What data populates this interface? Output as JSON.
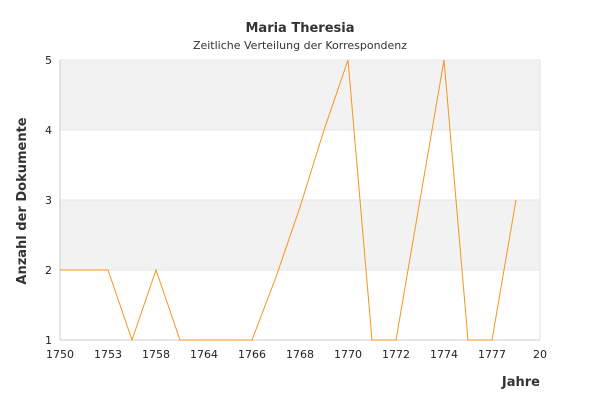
{
  "chart_data": {
    "type": "line",
    "title": "Maria Theresia",
    "subtitle": "Zeitliche Verteilung der Korrespondenz",
    "xlabel": "Jahre",
    "ylabel": "Anzahl der Dokumente",
    "x_tick_labels": [
      "1750",
      "1753",
      "1758",
      "1764",
      "1766",
      "1768",
      "1770",
      "1772",
      "1774",
      "1777",
      "20"
    ],
    "y_ticks": [
      1,
      2,
      3,
      4,
      5
    ],
    "ylim": [
      1,
      5
    ],
    "grid": true,
    "legend": "none",
    "colors": {
      "line": "#f7941d",
      "band": "#f2f2f2",
      "axis": "#cccccc"
    },
    "series": [
      {
        "x": [
          0,
          1,
          1.5,
          2,
          2.5,
          3,
          4,
          4.5,
          5,
          5.5,
          6,
          6.5,
          7,
          7.5,
          8,
          8.5,
          9,
          9.5
        ],
        "values": [
          2,
          2,
          1,
          2,
          1,
          1,
          1,
          1.9,
          2.9,
          4,
          5,
          1,
          1,
          3,
          5,
          1,
          1,
          3
        ]
      }
    ]
  }
}
